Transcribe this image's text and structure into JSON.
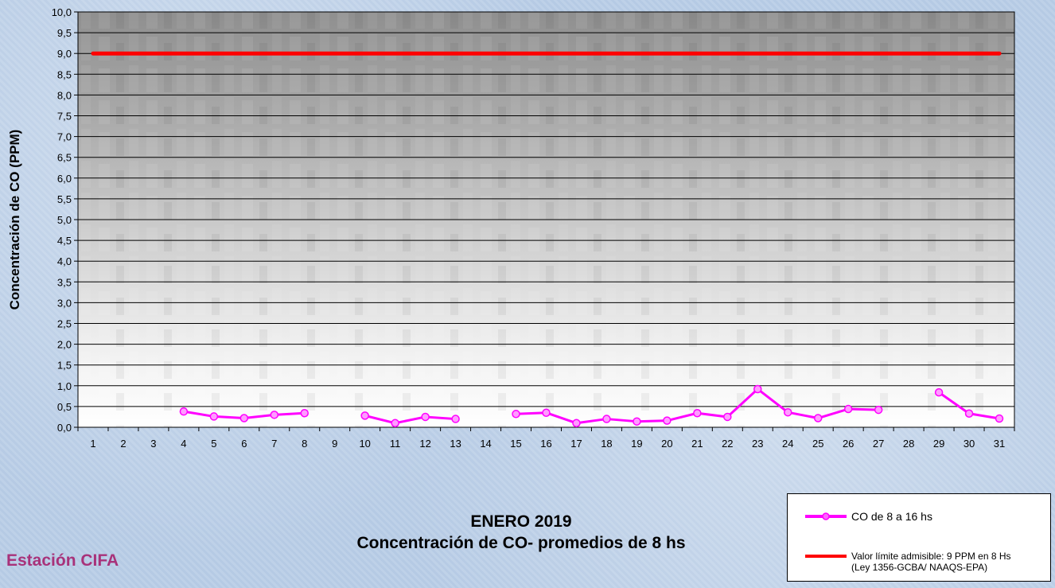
{
  "chart_data": {
    "type": "line",
    "title": "ENERO 2019",
    "subtitle": "Concentración de CO- promedios de 8 hs",
    "ylabel": "Concentración de CO (PPM)",
    "xlabel": "",
    "ylim": [
      0,
      10
    ],
    "ytick_step": 0.5,
    "yticks": [
      "0,0",
      "0,5",
      "1,0",
      "1,5",
      "2,0",
      "2,5",
      "3,0",
      "3,5",
      "4,0",
      "4,5",
      "5,0",
      "5,5",
      "6,0",
      "6,5",
      "7,0",
      "7,5",
      "8,0",
      "8,5",
      "9,0",
      "9,5",
      "10,0"
    ],
    "categories": [
      "1",
      "2",
      "3",
      "4",
      "5",
      "6",
      "7",
      "8",
      "9",
      "10",
      "11",
      "12",
      "13",
      "14",
      "15",
      "16",
      "17",
      "18",
      "19",
      "20",
      "21",
      "22",
      "23",
      "24",
      "25",
      "26",
      "27",
      "28",
      "29",
      "30",
      "31"
    ],
    "grid": true,
    "legend_position": "bottom-right",
    "series": [
      {
        "name": "CO de 8 a 16 hs",
        "color": "#ff00ff",
        "values": [
          null,
          null,
          null,
          0.38,
          0.26,
          0.22,
          0.3,
          0.34,
          null,
          0.28,
          0.1,
          0.25,
          0.2,
          null,
          0.32,
          0.35,
          0.1,
          0.2,
          0.14,
          0.16,
          0.34,
          0.25,
          0.92,
          0.36,
          0.22,
          0.44,
          0.42,
          null,
          0.84,
          0.33,
          0.21
        ]
      },
      {
        "name": "Valor límite admisible: 9 PPM en 8 Hs",
        "name_line2": "(Ley 1356-GCBA/ NAAQS-EPA)",
        "color": "#ff0000",
        "values": [
          9,
          9,
          9,
          9,
          9,
          9,
          9,
          9,
          9,
          9,
          9,
          9,
          9,
          9,
          9,
          9,
          9,
          9,
          9,
          9,
          9,
          9,
          9,
          9,
          9,
          9,
          9,
          9,
          9,
          9,
          9
        ]
      }
    ]
  },
  "footer": {
    "station": "Estación CIFA"
  }
}
